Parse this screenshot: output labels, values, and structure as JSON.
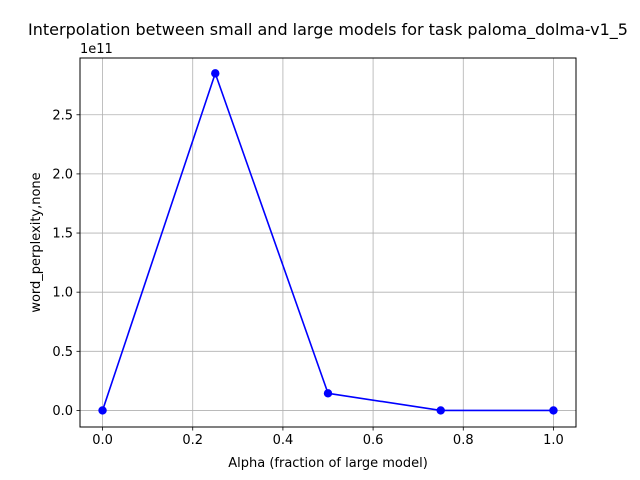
{
  "chart_data": {
    "type": "line",
    "title": "Interpolation between small and large models for task paloma_dolma-v1_5",
    "xlabel": "Alpha (fraction of large model)",
    "ylabel": "word_perplexity,none",
    "y_offset_label": "1e11",
    "xlim": [
      -0.05,
      1.05
    ],
    "ylim": [
      -0.14,
      2.98
    ],
    "x_ticks": [
      0.0,
      0.2,
      0.4,
      0.6,
      0.8,
      1.0
    ],
    "x_tick_labels": [
      "0.0",
      "0.2",
      "0.4",
      "0.6",
      "0.8",
      "1.0"
    ],
    "y_ticks": [
      0.0,
      0.5,
      1.0,
      1.5,
      2.0,
      2.5
    ],
    "y_tick_labels": [
      "0.0",
      "0.5",
      "1.0",
      "1.5",
      "2.0",
      "2.5"
    ],
    "grid": true,
    "legend": "none",
    "series": [
      {
        "color": "#0000ff",
        "marker": "circle",
        "x": [
          0.0,
          0.25,
          0.5,
          0.75,
          1.0
        ],
        "y": [
          0.0,
          2.85,
          0.145,
          0.0,
          0.0
        ]
      }
    ]
  }
}
